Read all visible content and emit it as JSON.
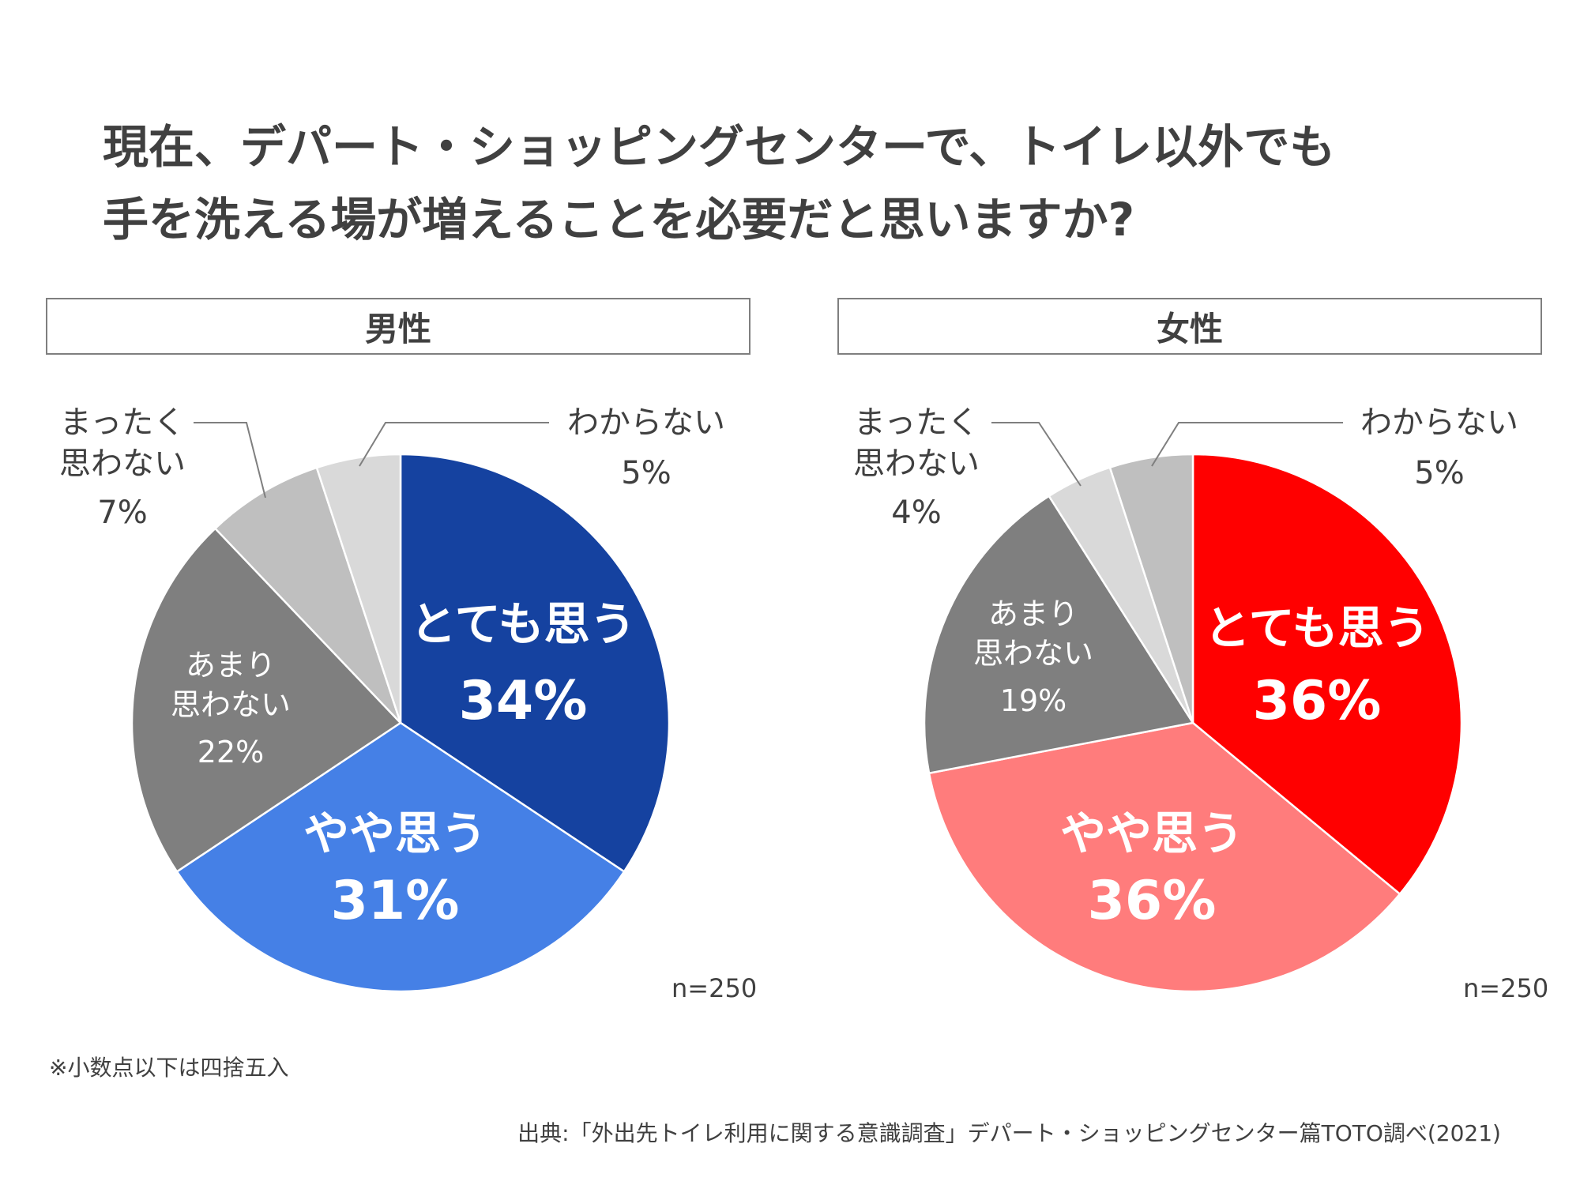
{
  "title": {
    "line1": "現在、デパート・ショッピングセンターで、トイレ以外でも",
    "line2": "手を洗える場が増えることを必要だと思いますか?"
  },
  "chart_data": [
    {
      "type": "pie",
      "title": "男性",
      "sample_size": "n=250",
      "slices": [
        {
          "label": "とても思う",
          "value": 34,
          "display": "34%",
          "color": "#1542A0",
          "label_style": "inside-bold"
        },
        {
          "label": "やや思う",
          "value": 31,
          "display": "31%",
          "color": "#4580E6",
          "label_style": "inside-bold"
        },
        {
          "label": "あまり思わない",
          "value": 22,
          "display": "22%",
          "color": "#7F7F7F",
          "label_style": "inside"
        },
        {
          "label": "まったく思わない",
          "value": 7,
          "display": "7%",
          "color": "#BFBFBF",
          "label_style": "outside"
        },
        {
          "label": "わからない",
          "value": 5,
          "display": "5%",
          "color": "#D9D9D9",
          "label_style": "outside"
        }
      ]
    },
    {
      "type": "pie",
      "title": "女性",
      "sample_size": "n=250",
      "slices": [
        {
          "label": "とても思う",
          "value": 36,
          "display": "36%",
          "color": "#FF0000",
          "label_style": "inside-bold"
        },
        {
          "label": "やや思う",
          "value": 36,
          "display": "36%",
          "color": "#FF7C7C",
          "label_style": "inside-bold"
        },
        {
          "label": "あまり思わない",
          "value": 19,
          "display": "19%",
          "color": "#7F7F7F",
          "label_style": "inside"
        },
        {
          "label": "まったく思わない",
          "value": 4,
          "display": "4%",
          "color": "#D9D9D9",
          "label_style": "outside"
        },
        {
          "label": "わからない",
          "value": 5,
          "display": "5%",
          "color": "#BFBFBF",
          "label_style": "outside"
        }
      ]
    }
  ],
  "footnote": "※小数点以下は四捨五入",
  "source": "出典:「外出先トイレ利用に関する意識調査」デパート・ショッピングセンター篇TOTO調べ(2021)"
}
